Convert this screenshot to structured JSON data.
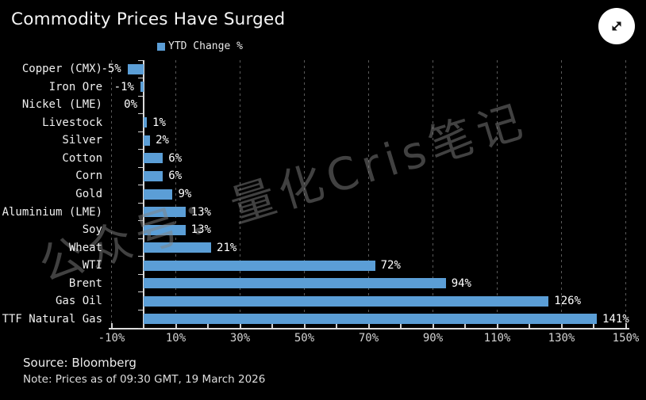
{
  "page": {
    "background": "#000000"
  },
  "header": {
    "title": "Commodity Prices Have Surged"
  },
  "controls": {
    "expand_button": {
      "icon": "expand-diagonal-arrows"
    }
  },
  "watermark": {
    "text": "公众号：量化Cris笔记"
  },
  "footer": {
    "source": "Source: Bloomberg",
    "note": "Note: Prices as of 09:30 GMT, 19 March 2026"
  },
  "chart_data": {
    "type": "bar",
    "orientation": "horizontal",
    "title": "Commodity Prices Have Surged",
    "legend": {
      "label": "YTD Change %",
      "position": "top",
      "swatch_color": "#5b9ed6"
    },
    "categories": [
      "Copper (CMX)",
      "Iron Ore",
      "Nickel (LME)",
      "Livestock",
      "Silver",
      "Cotton",
      "Corn",
      "Gold",
      "Aluminium (LME)",
      "Soy",
      "Wheat",
      "WTI",
      "Brent",
      "Gas Oil",
      "TTF Natural Gas"
    ],
    "values": [
      -5,
      -1,
      0,
      1,
      2,
      6,
      6,
      9,
      13,
      13,
      21,
      72,
      94,
      126,
      141
    ],
    "value_labels": [
      "-5%",
      "-1%",
      "0%",
      "1%",
      "2%",
      "6%",
      "6%",
      "9%",
      "13%",
      "13%",
      "21%",
      "72%",
      "94%",
      "126%",
      "141%"
    ],
    "xlabel": "",
    "ylabel": "",
    "xlim": [
      -10,
      150
    ],
    "x_major_ticks": [
      -10,
      10,
      30,
      50,
      70,
      90,
      110,
      130,
      150
    ],
    "x_major_tick_labels": [
      "-10%",
      "10%",
      "30%",
      "50%",
      "70%",
      "90%",
      "110%",
      "130%",
      "150%"
    ],
    "x_minor_tick_step": 10,
    "grid": "vertical-dashed-at-major-ticks",
    "bar_color": "#5b9ed6",
    "background": "#000000",
    "zero_line": true
  }
}
